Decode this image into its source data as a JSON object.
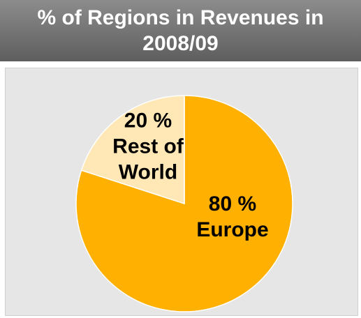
{
  "chart_data": {
    "type": "pie",
    "title": "% of Regions in Revenues in 2008/09",
    "categories": [
      "Europe",
      "Rest of World"
    ],
    "values": [
      80,
      20
    ],
    "value_labels": [
      "80 %",
      "20 %"
    ],
    "colors": [
      "#FFB000",
      "#FFE8B5"
    ]
  }
}
